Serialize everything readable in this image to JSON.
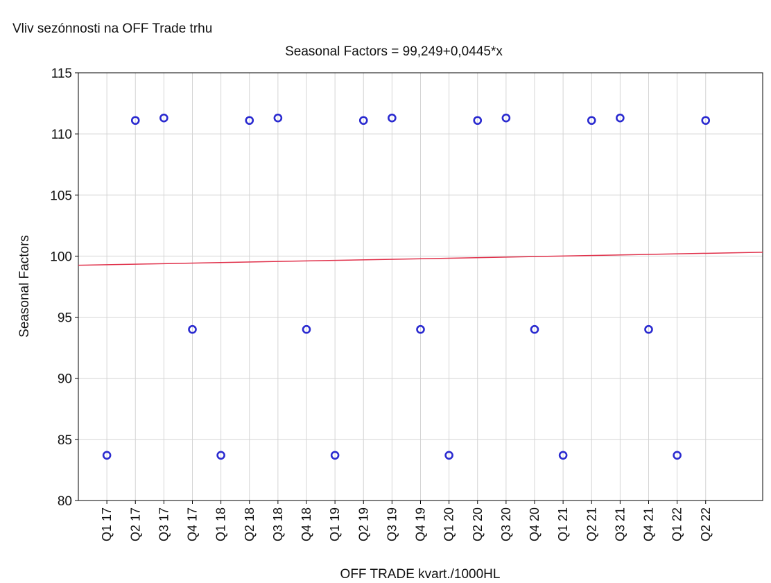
{
  "chart_data": {
    "type": "scatter",
    "title": "Vliv sezónnosti na OFF Trade trhu",
    "subtitle": "Seasonal Factors = 99,249+0,0445*x",
    "xlabel": "OFF TRADE kvart./1000HL",
    "ylabel": "Seasonal Factors",
    "x": [
      1,
      2,
      3,
      4,
      5,
      6,
      7,
      8,
      9,
      10,
      11,
      12,
      13,
      14,
      15,
      16,
      17,
      18,
      19,
      20,
      21,
      22
    ],
    "series": [
      {
        "name": "Seasonal Factors",
        "color": "#2a2ad0",
        "values": [
          83.7,
          111.1,
          111.3,
          94.0,
          83.7,
          111.1,
          111.3,
          94.0,
          83.7,
          111.1,
          111.3,
          94.0,
          83.7,
          111.1,
          111.3,
          94.0,
          83.7,
          111.1,
          111.3,
          94.0,
          83.7,
          111.1
        ]
      }
    ],
    "fit": {
      "intercept": 99.249,
      "slope": 0.0445,
      "color": "#e0304a"
    },
    "xlim": [
      0,
      24
    ],
    "xticks": [
      {
        "value": 1,
        "label": "Q1 17"
      },
      {
        "value": 2,
        "label": "Q2 17"
      },
      {
        "value": 3,
        "label": "Q3 17"
      },
      {
        "value": 4,
        "label": "Q4 17"
      },
      {
        "value": 5,
        "label": "Q1 18"
      },
      {
        "value": 6,
        "label": "Q2 18"
      },
      {
        "value": 7,
        "label": "Q3 18"
      },
      {
        "value": 8,
        "label": "Q4 18"
      },
      {
        "value": 9,
        "label": "Q1 19"
      },
      {
        "value": 10,
        "label": "Q2 19"
      },
      {
        "value": 11,
        "label": "Q3 19"
      },
      {
        "value": 12,
        "label": "Q4 19"
      },
      {
        "value": 13,
        "label": "Q1 20"
      },
      {
        "value": 14,
        "label": "Q2 20"
      },
      {
        "value": 15,
        "label": "Q3 20"
      },
      {
        "value": 16,
        "label": "Q4 20"
      },
      {
        "value": 17,
        "label": "Q1 21"
      },
      {
        "value": 18,
        "label": "Q2 21"
      },
      {
        "value": 19,
        "label": "Q3 21"
      },
      {
        "value": 20,
        "label": "Q4 21"
      },
      {
        "value": 21,
        "label": "Q1 22"
      },
      {
        "value": 22,
        "label": "Q2 22"
      }
    ],
    "ylim": [
      80,
      115
    ],
    "yticks": [
      80,
      85,
      90,
      95,
      100,
      105,
      110,
      115
    ],
    "grid": true
  }
}
